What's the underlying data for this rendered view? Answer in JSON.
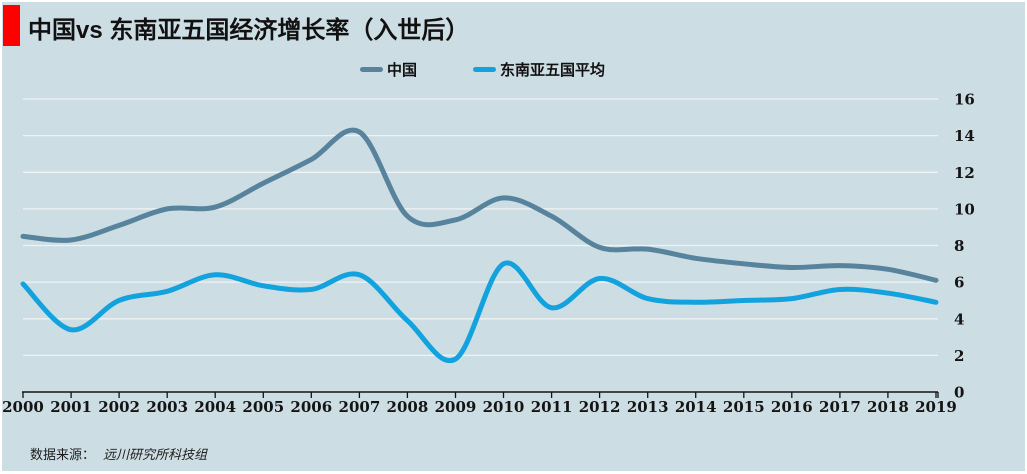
{
  "window": {
    "background_color": "#cddde4",
    "frame_color": "#ffffff"
  },
  "header": {
    "title": "中国vs 东南亚五国经济增长率（入世后）",
    "accent_bar_color": "#fe0000"
  },
  "legend": {
    "items": [
      {
        "label": "中国",
        "color": "#58839d"
      },
      {
        "label": "东南亚五国平均",
        "color": "#12a2de"
      }
    ]
  },
  "footer": {
    "source_prefix": "数据来源：",
    "source_name": "远川研究所科技组"
  },
  "chart_data": {
    "type": "line",
    "title": "中国vs 东南亚五国经济增长率（入世后）",
    "x": [
      2000,
      2001,
      2002,
      2003,
      2004,
      2005,
      2006,
      2007,
      2008,
      2009,
      2010,
      2011,
      2012,
      2013,
      2014,
      2015,
      2016,
      2017,
      2018,
      2019
    ],
    "series": [
      {
        "name": "中国",
        "color": "#58839d",
        "values": [
          8.5,
          8.3,
          9.1,
          10.0,
          10.1,
          11.4,
          12.7,
          14.2,
          9.6,
          9.4,
          10.6,
          9.6,
          7.9,
          7.8,
          7.3,
          7.0,
          6.8,
          6.9,
          6.7,
          6.1
        ]
      },
      {
        "name": "东南亚五国平均",
        "color": "#12a2de",
        "values": [
          5.9,
          3.4,
          5.0,
          5.5,
          6.4,
          5.8,
          5.6,
          6.4,
          3.9,
          1.8,
          7.0,
          4.6,
          6.2,
          5.1,
          4.9,
          5.0,
          5.1,
          5.6,
          5.4,
          4.9
        ]
      }
    ],
    "xlabel": "",
    "ylabel": "",
    "ylim": [
      0,
      16
    ],
    "ytick_step": 2,
    "grid": true,
    "gridline_color": "#eef3f5",
    "axis_color": "#141414",
    "tick_label_color": "#141414",
    "smooth": true,
    "legend_position": "top",
    "line_width": 5
  }
}
